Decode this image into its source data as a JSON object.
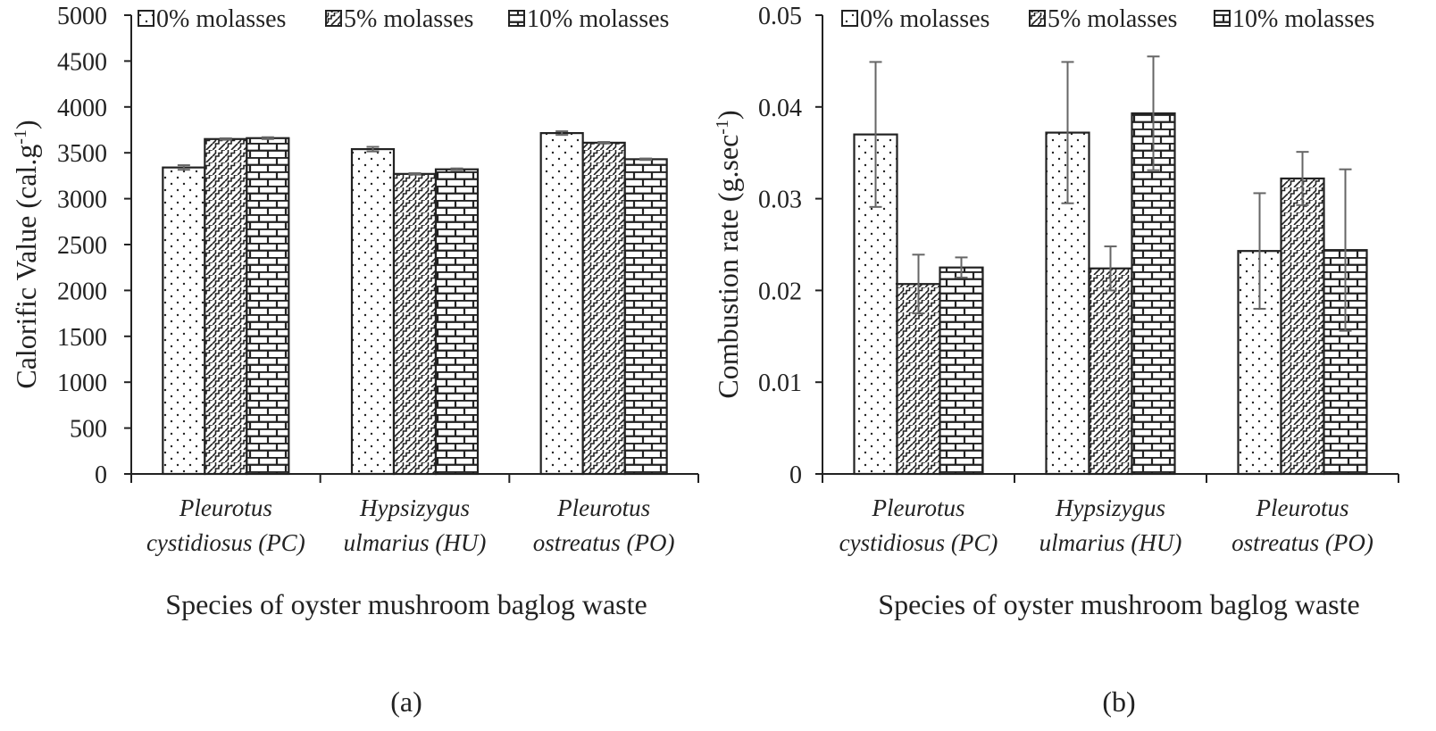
{
  "colors": {
    "ink": "#222222",
    "bar_fill": "#ffffff",
    "error_bar": "#666666",
    "background": "#ffffff"
  },
  "series_names": [
    "0% molasses",
    "5% molasses",
    "10% molasses"
  ],
  "chart_data": [
    {
      "id": "a",
      "type": "bar",
      "caption": "(a)",
      "title": "",
      "xlabel": "Species of oyster mushroom baglog waste",
      "ylabel": "Calorific Value (cal.g",
      "ylabel_sup": "-1",
      "ylabel_close": ")",
      "ylim": [
        0,
        5000
      ],
      "yticks": [
        "0",
        "500",
        "1000",
        "1500",
        "2000",
        "2500",
        "3000",
        "3500",
        "4000",
        "4500",
        "5000"
      ],
      "categories": [
        {
          "line1": "Pleurotus",
          "line2": "cystidiosus (PC)"
        },
        {
          "line1": "Hypsizygus",
          "line2": "ulmarius (HU)"
        },
        {
          "line1": "Pleurotus",
          "line2": "ostreatus (PO)"
        }
      ],
      "legend": [
        "0% molasses",
        "5% molasses",
        "10% molasses"
      ],
      "series": [
        {
          "name": "0% molasses",
          "pattern": "dots",
          "values": [
            3340,
            3540,
            3715
          ],
          "errors": [
            25,
            25,
            20
          ]
        },
        {
          "name": "5% molasses",
          "pattern": "zigzag",
          "values": [
            3650,
            3270,
            3610
          ],
          "errors": [
            8,
            8,
            8
          ]
        },
        {
          "name": "10% molasses",
          "pattern": "brick",
          "values": [
            3660,
            3320,
            3430
          ],
          "errors": [
            10,
            10,
            8
          ]
        }
      ]
    },
    {
      "id": "b",
      "type": "bar",
      "caption": "(b)",
      "title": "",
      "xlabel": "Species of oyster mushroom baglog waste",
      "ylabel": "Combustion rate (g.sec",
      "ylabel_sup": "-1",
      "ylabel_close": ")",
      "ylim": [
        0,
        0.05
      ],
      "yticks": [
        "0",
        "0.01",
        "0.02",
        "0.03",
        "0.04",
        "0.05"
      ],
      "categories": [
        {
          "line1": "Pleurotus",
          "line2": "cystidiosus (PC)"
        },
        {
          "line1": "Hypsizygus",
          "line2": "ulmarius (HU)"
        },
        {
          "line1": "Pleurotus",
          "line2": "ostreatus (PO)"
        }
      ],
      "legend": [
        "0% molasses",
        "5% molasses",
        "10% molasses"
      ],
      "series": [
        {
          "name": "0% molasses",
          "pattern": "dots",
          "values": [
            0.037,
            0.0372,
            0.0243
          ],
          "errors": [
            0.0079,
            0.0077,
            0.0063
          ]
        },
        {
          "name": "5% molasses",
          "pattern": "zigzag",
          "values": [
            0.0207,
            0.0224,
            0.0322
          ],
          "errors": [
            0.0032,
            0.0024,
            0.0029
          ]
        },
        {
          "name": "10% molasses",
          "pattern": "brick",
          "values": [
            0.0225,
            0.0393,
            0.0244
          ],
          "errors": [
            0.0011,
            0.0062,
            0.0088
          ]
        }
      ]
    }
  ]
}
